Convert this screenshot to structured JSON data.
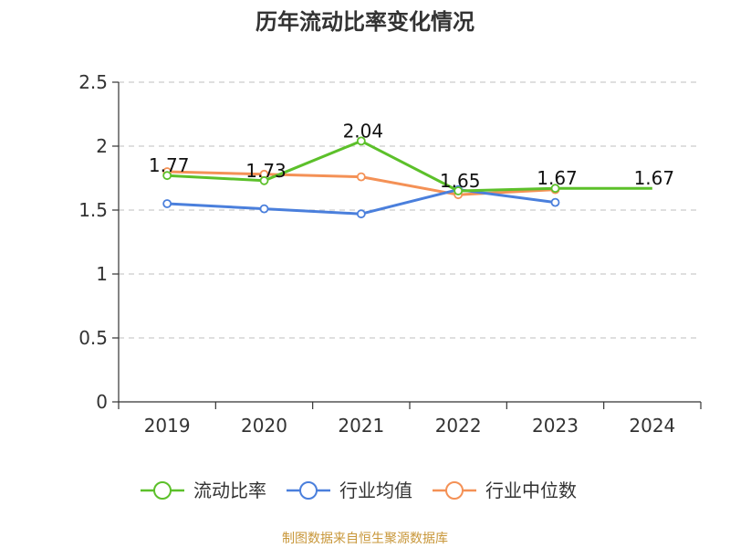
{
  "chart_data": {
    "type": "line",
    "title": "历年流动比率变化情况",
    "categories": [
      "2019",
      "2020",
      "2021",
      "2022",
      "2023",
      "2024"
    ],
    "ylim": [
      0,
      2.5
    ],
    "yticks": [
      "0",
      "0.5",
      "1",
      "1.5",
      "2",
      "2.5"
    ],
    "grid": true,
    "legend_position": "bottom",
    "series": [
      {
        "name": "流动比率",
        "color": "#5cc02a",
        "values": [
          1.77,
          1.73,
          2.04,
          1.65,
          1.67,
          1.67
        ],
        "labels": [
          "1.77",
          "1.73",
          "2.04",
          "1.65",
          "1.67",
          "1.67"
        ]
      },
      {
        "name": "行业均值",
        "color": "#4a7fdc",
        "values": [
          1.55,
          1.51,
          1.47,
          1.66,
          1.56,
          null
        ]
      },
      {
        "name": "行业中位数",
        "color": "#f49156",
        "values": [
          1.8,
          1.78,
          1.76,
          1.62,
          1.66,
          null
        ]
      }
    ]
  },
  "source": "制图数据来自恒生聚源数据库"
}
